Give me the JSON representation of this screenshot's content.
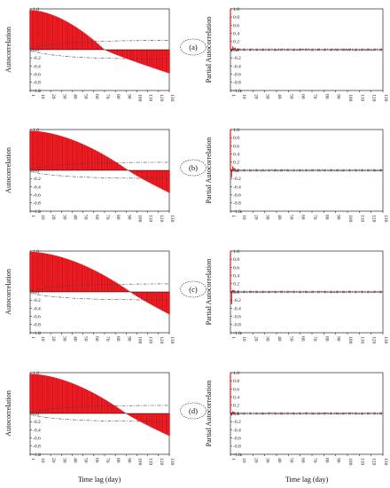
{
  "figure": {
    "x_axis_label": "Time lag (day)",
    "acf_ylabel": "Autocorrelation",
    "pacf_ylabel": "Partial Autocorrelation",
    "y_ticks": [
      "-1.0",
      "-0.8",
      "-0.6",
      "-0.4",
      "-0.2",
      "0.0",
      "0.2",
      "0.4",
      "0.6",
      "0.8",
      "1.0"
    ],
    "x_ticks": [
      "1",
      "10",
      "20",
      "30",
      "40",
      "50",
      "60",
      "70",
      "80",
      "90",
      "100",
      "110",
      "120",
      "130"
    ],
    "colors": {
      "bar": "#e8141c",
      "bar_edge": "#8a0000",
      "confidence": "#444444",
      "frame": "#000000"
    }
  },
  "chart_data": [
    {
      "panel": "(a)",
      "type": "bar",
      "kind": "acf",
      "ylabel": "Autocorrelation",
      "xlabel": "",
      "ylim": [
        -1.0,
        1.0
      ],
      "xlim": [
        1,
        130
      ],
      "acf_start": 0.97,
      "acf_lag0": 70,
      "acf_end": -0.58,
      "confidence_upper": {
        "start": 0.03,
        "end": 0.23
      },
      "confidence_lower": {
        "start": -0.03,
        "end": -0.23
      }
    },
    {
      "panel": "(a)",
      "type": "bar",
      "kind": "pacf",
      "ylabel": "Partial Autocorrelation",
      "xlabel": "",
      "ylim": [
        -1.0,
        1.0
      ],
      "xlim": [
        1,
        130
      ],
      "spikes": [
        [
          1,
          1.0
        ],
        [
          2,
          -0.05
        ],
        [
          3,
          0.08
        ],
        [
          4,
          0.04
        ],
        [
          5,
          0.05
        ],
        [
          6,
          -0.03
        ],
        [
          7,
          0.03
        ]
      ],
      "noise": 0.025,
      "confidence": 0.02
    },
    {
      "panel": "(b)",
      "type": "bar",
      "kind": "acf",
      "ylabel": "Autocorrelation",
      "xlabel": "",
      "ylim": [
        -1.0,
        1.0
      ],
      "xlim": [
        1,
        130
      ],
      "acf_start": 0.97,
      "acf_lag0": 92,
      "acf_end": -0.55,
      "confidence_upper": {
        "start": 0.03,
        "end": 0.2
      },
      "confidence_lower": {
        "start": -0.03,
        "end": -0.2
      }
    },
    {
      "panel": "(b)",
      "type": "bar",
      "kind": "pacf",
      "ylabel": "Partial Autocorrelation",
      "xlabel": "",
      "ylim": [
        -1.0,
        1.0
      ],
      "xlim": [
        1,
        130
      ],
      "spikes": [
        [
          1,
          1.0
        ],
        [
          2,
          -0.17
        ],
        [
          3,
          0.1
        ],
        [
          4,
          0.06
        ],
        [
          5,
          0.04
        ],
        [
          6,
          -0.03
        ]
      ],
      "noise": 0.02,
      "confidence": 0.02
    },
    {
      "panel": "(c)",
      "type": "bar",
      "kind": "acf",
      "ylabel": "Autocorrelation",
      "xlabel": "",
      "ylim": [
        -1.0,
        1.0
      ],
      "xlim": [
        1,
        130
      ],
      "acf_start": 0.98,
      "acf_lag0": 94,
      "acf_end": -0.55,
      "confidence_upper": {
        "start": 0.03,
        "end": 0.2
      },
      "confidence_lower": {
        "start": -0.03,
        "end": -0.2
      }
    },
    {
      "panel": "(c)",
      "type": "bar",
      "kind": "pacf",
      "ylabel": "Partial Autocorrelation",
      "xlabel": "",
      "ylim": [
        -1.0,
        1.0
      ],
      "xlim": [
        1,
        130
      ],
      "spikes": [
        [
          1,
          1.0
        ],
        [
          2,
          -0.3
        ],
        [
          3,
          0.05
        ],
        [
          4,
          0.04
        ],
        [
          5,
          -0.03
        ]
      ],
      "noise": 0.02,
      "confidence": 0.02
    },
    {
      "panel": "(d)",
      "type": "bar",
      "kind": "acf",
      "ylabel": "Autocorrelation",
      "xlabel": "Time lag (day)",
      "ylim": [
        -1.0,
        1.0
      ],
      "xlim": [
        1,
        130
      ],
      "acf_start": 0.97,
      "acf_lag0": 90,
      "acf_end": -0.55,
      "confidence_upper": {
        "start": 0.03,
        "end": 0.2
      },
      "confidence_lower": {
        "start": -0.03,
        "end": -0.2
      }
    },
    {
      "panel": "(d)",
      "type": "bar",
      "kind": "pacf",
      "ylabel": "Partial Autocorrelation",
      "xlabel": "Time lag (day)",
      "ylim": [
        -1.0,
        1.0
      ],
      "xlim": [
        1,
        130
      ],
      "spikes": [
        [
          1,
          1.0
        ],
        [
          2,
          -0.05
        ],
        [
          3,
          0.05
        ],
        [
          4,
          0.04
        ],
        [
          5,
          -0.03
        ]
      ],
      "noise": 0.02,
      "confidence": 0.02
    }
  ]
}
